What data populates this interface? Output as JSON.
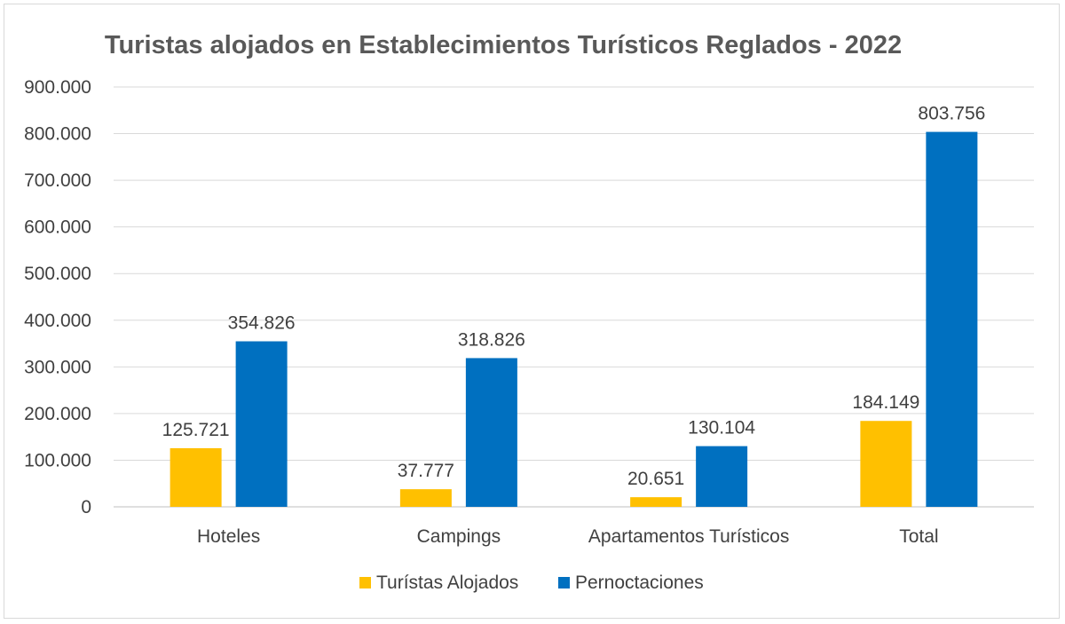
{
  "chart_data": {
    "type": "bar",
    "title": "Turistas alojados en Establecimientos Turísticos Reglados - 2022",
    "xlabel": "",
    "ylabel": "",
    "ylim": [
      0,
      900000
    ],
    "yticks": [
      0,
      100000,
      200000,
      300000,
      400000,
      500000,
      600000,
      700000,
      800000,
      900000
    ],
    "ytick_labels": [
      "0",
      "100.000",
      "200.000",
      "300.000",
      "400.000",
      "500.000",
      "600.000",
      "700.000",
      "800.000",
      "900.000"
    ],
    "grid": true,
    "legend_position": "bottom",
    "categories": [
      "Hoteles",
      "Campings",
      "Apartamentos Turísticos",
      "Total"
    ],
    "series": [
      {
        "name": "Turístas Alojados",
        "color": "#FFC000",
        "values": [
          125721,
          37777,
          20651,
          184149
        ],
        "labels": [
          "125.721",
          "37.777",
          "20.651",
          "184.149"
        ]
      },
      {
        "name": "Pernoctaciones",
        "color": "#0070C0",
        "values": [
          354826,
          318826,
          130104,
          803756
        ],
        "labels": [
          "354.826",
          "318.826",
          "130.104",
          "803.756"
        ]
      }
    ]
  }
}
